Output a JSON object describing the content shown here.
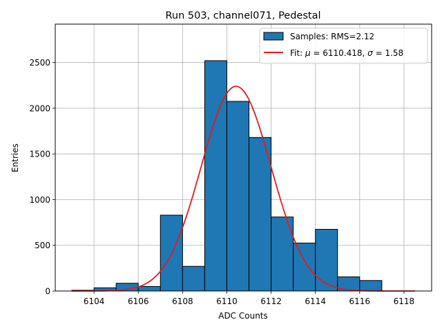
{
  "chart_data": {
    "type": "bar",
    "title": "Run 503, channel071, Pedestal",
    "xlabel": "ADC Counts",
    "ylabel": "Entries",
    "xlim": [
      6102.25,
      6119.25
    ],
    "ylim": [
      0,
      2920
    ],
    "xticks": [
      6104,
      6106,
      6108,
      6110,
      6112,
      6114,
      6116,
      6118
    ],
    "yticks": [
      0,
      500,
      1000,
      1500,
      2000,
      2500
    ],
    "grid": true,
    "legend_position": "top-right",
    "histogram": {
      "name": "Samples: RMS=2.12",
      "bins": [
        {
          "x0": 6103,
          "x1": 6104,
          "value": 8
        },
        {
          "x0": 6104,
          "x1": 6105,
          "value": 35
        },
        {
          "x0": 6105,
          "x1": 6106,
          "value": 85
        },
        {
          "x0": 6106,
          "x1": 6107,
          "value": 50
        },
        {
          "x0": 6107,
          "x1": 6108,
          "value": 830
        },
        {
          "x0": 6108,
          "x1": 6109,
          "value": 270
        },
        {
          "x0": 6109,
          "x1": 6110,
          "value": 2520
        },
        {
          "x0": 6110,
          "x1": 6111,
          "value": 2075
        },
        {
          "x0": 6111,
          "x1": 6112,
          "value": 1680
        },
        {
          "x0": 6112,
          "x1": 6113,
          "value": 810
        },
        {
          "x0": 6113,
          "x1": 6114,
          "value": 525
        },
        {
          "x0": 6114,
          "x1": 6115,
          "value": 675
        },
        {
          "x0": 6115,
          "x1": 6116,
          "value": 155
        },
        {
          "x0": 6116,
          "x1": 6117,
          "value": 115
        }
      ],
      "color": "#1f77b4",
      "edge_color": "#000000"
    },
    "fit": {
      "name_prefix": "Fit: ",
      "mu_symbol": "μ",
      "mu_text": " = 6110.418, ",
      "sigma_symbol": "σ",
      "sigma_text": " = 1.58",
      "mu": 6110.418,
      "sigma": 1.58,
      "amplitude": 2240,
      "x_range": [
        6103,
        6118.5
      ],
      "color": "#e41a1c"
    }
  }
}
